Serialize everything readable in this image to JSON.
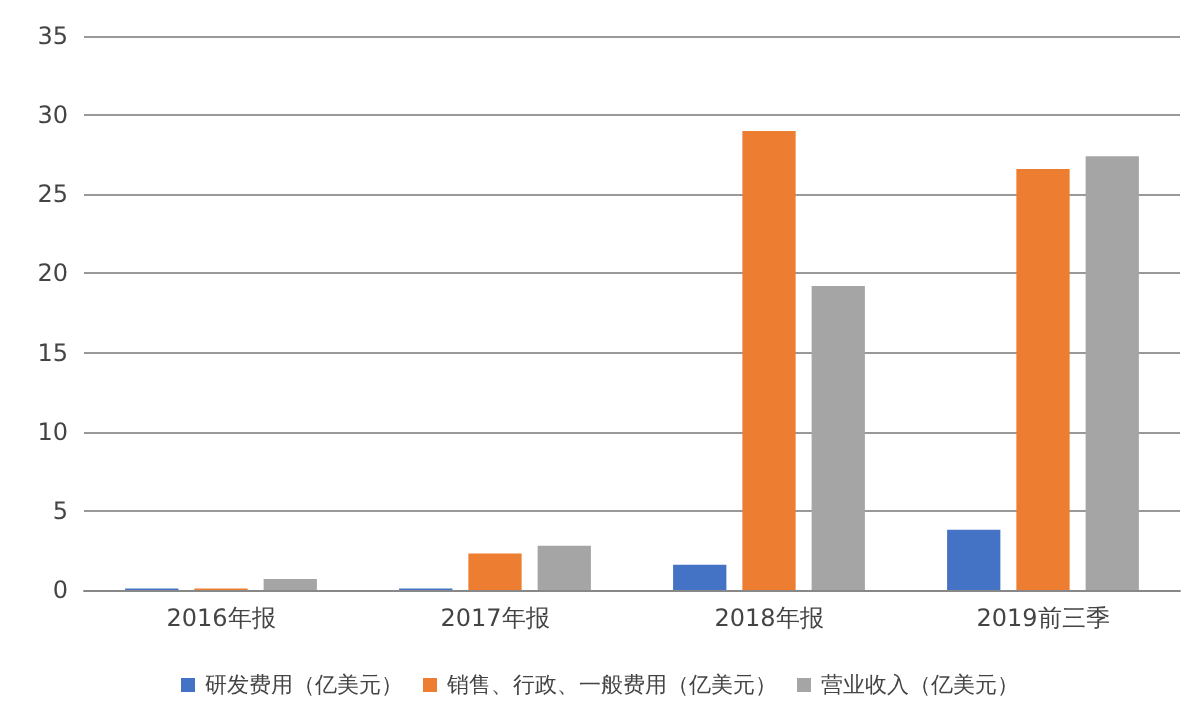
{
  "chart_data": {
    "type": "bar",
    "categories": [
      "2016年报",
      "2017年报",
      "2018年报",
      "2019前三季"
    ],
    "series": [
      {
        "name": "研发费用（亿美元）",
        "color": "#4472c4",
        "values": [
          0.1,
          0.1,
          1.6,
          3.8
        ]
      },
      {
        "name": "销售、行政、一般费用（亿美元）",
        "color": "#ed7d31",
        "values": [
          0.1,
          2.3,
          29.0,
          26.6
        ]
      },
      {
        "name": "营业收入（亿美元）",
        "color": "#a5a5a5",
        "values": [
          0.7,
          2.8,
          19.2,
          27.4
        ]
      }
    ],
    "ylim": [
      0,
      35
    ],
    "yticks": [
      0,
      5,
      10,
      15,
      20,
      25,
      30,
      35
    ],
    "grid": "y",
    "legend": "bottom"
  }
}
